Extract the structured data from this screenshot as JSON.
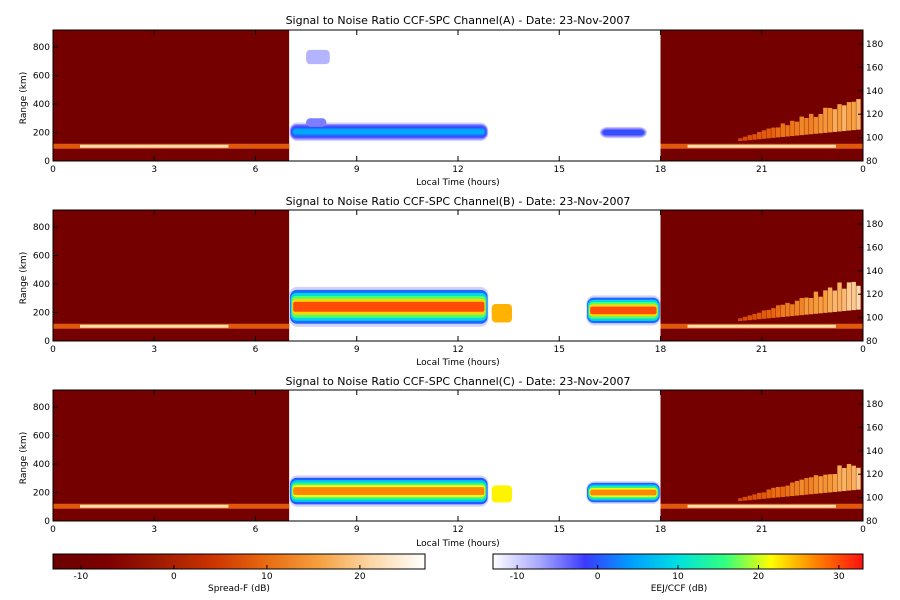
{
  "chart_data": {
    "type": "heatmap",
    "panels": [
      {
        "title": "Signal to Noise Ratio CCF-SPC Channel(A) - Date: 23-Nov-2007",
        "xlabel": "Local Time (hours)",
        "ylabel": "Range (km)",
        "x_ticks": [
          "0",
          "3",
          "6",
          "9",
          "12",
          "15",
          "18",
          "21",
          "0"
        ],
        "y_ticks": [
          "0",
          "200",
          "400",
          "600",
          "800"
        ],
        "y2_ticks": [
          "80",
          "100",
          "120",
          "140",
          "160",
          "180"
        ],
        "night_segments": [
          [
            0,
            7
          ],
          [
            18,
            24
          ]
        ],
        "day_window": [
          7,
          18
        ],
        "eej_layers": [
          {
            "t0": 7.0,
            "t1": 12.9,
            "lower_km": 140,
            "upper_km": 270,
            "peak_db": 5
          },
          {
            "t0": 16.2,
            "t1": 17.6,
            "lower_km": 160,
            "upper_km": 240,
            "peak_db": 0
          }
        ],
        "eej_patches": [
          {
            "t0": 7.5,
            "t1": 8.2,
            "r0_km": 680,
            "r1_km": 780,
            "db": -8
          },
          {
            "t0": 7.5,
            "t1": 8.1,
            "r0_km": 240,
            "r1_km": 300,
            "db": -5
          }
        ],
        "spread_f": {
          "t0": 0.0,
          "t1": 23.9,
          "r0_km": 100,
          "r1_km": 420,
          "peak_db": 20
        }
      },
      {
        "title": "Signal to Noise Ratio CCF-SPC Channel(B) - Date: 23-Nov-2007",
        "xlabel": "Local Time (hours)",
        "ylabel": "Range (km)",
        "x_ticks": [
          "0",
          "3",
          "6",
          "9",
          "12",
          "15",
          "18",
          "21",
          "0"
        ],
        "y_ticks": [
          "0",
          "200",
          "400",
          "600",
          "800"
        ],
        "y2_ticks": [
          "80",
          "100",
          "120",
          "140",
          "160",
          "180"
        ],
        "night_segments": [
          [
            0,
            7
          ],
          [
            18,
            24
          ]
        ],
        "day_window": [
          7,
          18
        ],
        "eej_layers": [
          {
            "t0": 7.0,
            "t1": 12.9,
            "lower_km": 100,
            "upper_km": 380,
            "peak_db": 30
          },
          {
            "t0": 15.8,
            "t1": 18.0,
            "lower_km": 110,
            "upper_km": 320,
            "peak_db": 30
          }
        ],
        "eej_patches": [
          {
            "t0": 13.0,
            "t1": 13.6,
            "r0_km": 130,
            "r1_km": 260,
            "db": 25
          }
        ],
        "spread_f": {
          "t0": 0.0,
          "t1": 23.9,
          "r0_km": 100,
          "r1_km": 420,
          "peak_db": 22
        }
      },
      {
        "title": "Signal to Noise Ratio CCF-SPC Channel(C) - Date: 23-Nov-2007",
        "xlabel": "Local Time (hours)",
        "ylabel": "Range (km)",
        "x_ticks": [
          "0",
          "3",
          "6",
          "9",
          "12",
          "15",
          "18",
          "21",
          "0"
        ],
        "y_ticks": [
          "0",
          "200",
          "400",
          "600",
          "800"
        ],
        "y2_ticks": [
          "80",
          "100",
          "120",
          "140",
          "160",
          "180"
        ],
        "night_segments": [
          [
            0,
            7
          ],
          [
            18,
            24
          ]
        ],
        "day_window": [
          7,
          18
        ],
        "eej_layers": [
          {
            "t0": 7.0,
            "t1": 12.9,
            "lower_km": 100,
            "upper_km": 320,
            "peak_db": 27
          },
          {
            "t0": 15.8,
            "t1": 18.0,
            "lower_km": 120,
            "upper_km": 280,
            "peak_db": 27
          }
        ],
        "eej_patches": [
          {
            "t0": 13.0,
            "t1": 13.6,
            "r0_km": 130,
            "r1_km": 250,
            "db": 22
          }
        ],
        "spread_f": {
          "t0": 0.0,
          "t1": 23.9,
          "r0_km": 100,
          "r1_km": 400,
          "peak_db": 20
        }
      }
    ],
    "xlim": [
      0,
      24
    ],
    "ylim": [
      0,
      920
    ],
    "y2lim": [
      80,
      192
    ],
    "colorbars": [
      {
        "label": "Spread-F (dB)",
        "ticks": [
          "-10",
          "0",
          "10",
          "20"
        ],
        "range": [
          -13,
          27
        ],
        "colormap": "hot",
        "colors": [
          "#6b0000",
          "#7d0000",
          "#a01a00",
          "#cc3300",
          "#e86a10",
          "#f5a040",
          "#fcd8a8",
          "#ffffff"
        ]
      },
      {
        "label": "EEJ/CCF (dB)",
        "ticks": [
          "-10",
          "0",
          "10",
          "20",
          "30"
        ],
        "range": [
          -13,
          33
        ],
        "colormap": "rainbow",
        "colors": [
          "#ffffff",
          "#a8a8ff",
          "#3a3aff",
          "#00a0ff",
          "#00e0e0",
          "#30ff80",
          "#ffff00",
          "#ff8000",
          "#ff1010"
        ]
      }
    ]
  }
}
